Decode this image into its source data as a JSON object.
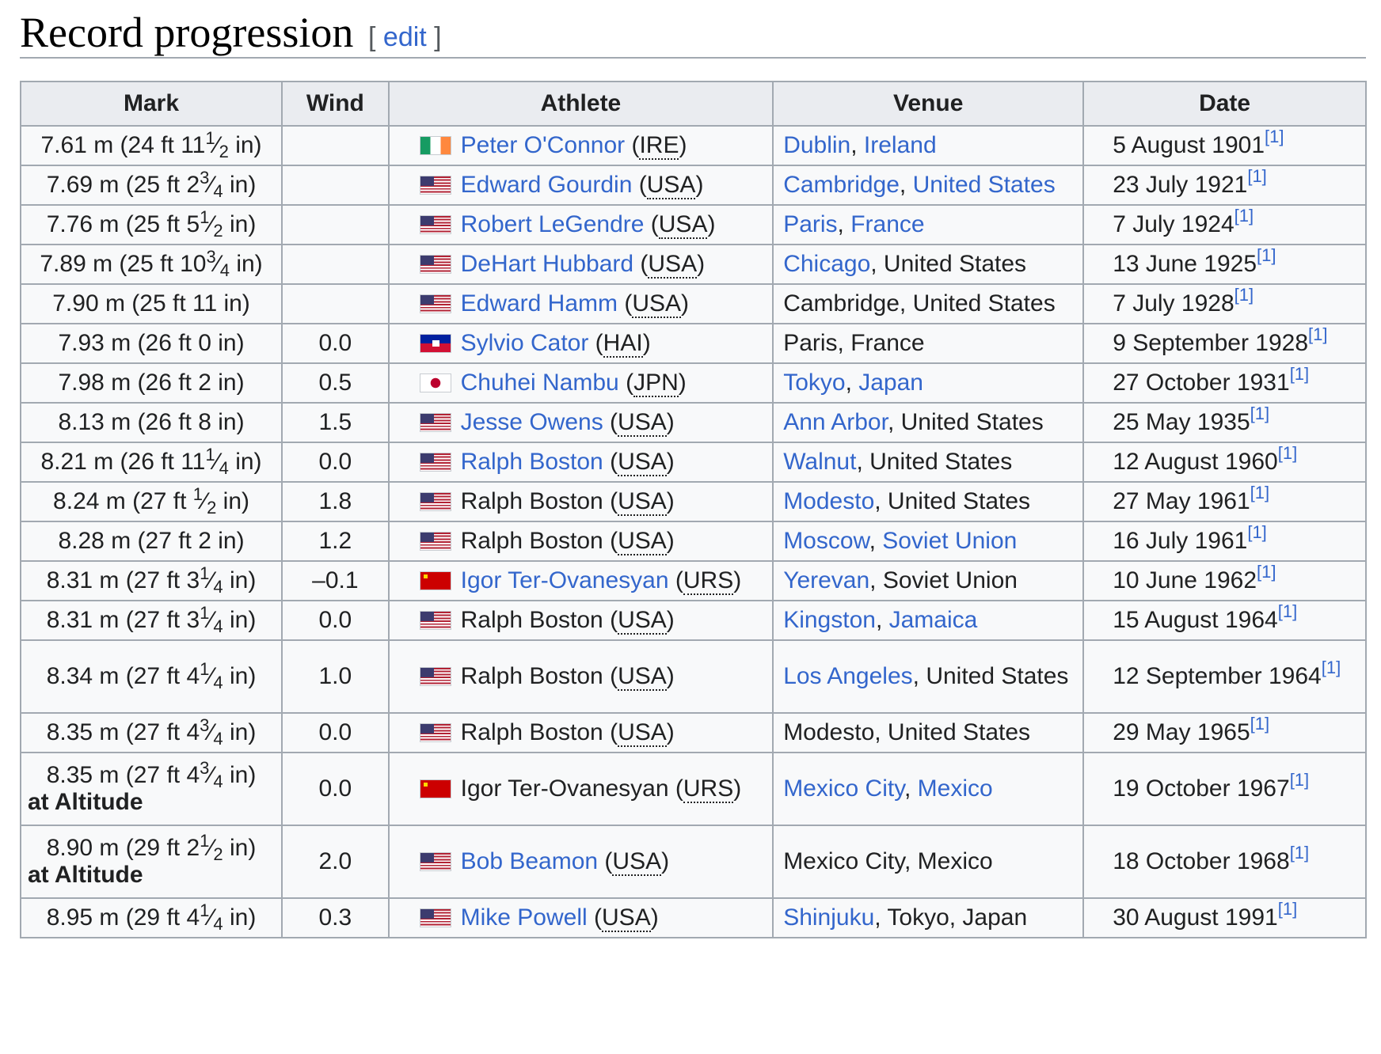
{
  "section": {
    "title": "Record progression",
    "edit_open": "[ ",
    "edit_label": "edit",
    "edit_close": " ]"
  },
  "table": {
    "headers": [
      "Mark",
      "Wind",
      "Athlete",
      "Venue",
      "Date"
    ],
    "rows": [
      {
        "mark": {
          "pre": "7.61 m (24 ft 11",
          "num": "1",
          "den": "2",
          "post": " in)"
        },
        "wind": "",
        "flag": "ire",
        "athlete": "Peter O'Connor",
        "athlete_link": true,
        "noc": "IRE",
        "venue": [
          {
            "text": "Dublin",
            "link": true
          },
          {
            "text": ", "
          },
          {
            "text": "Ireland",
            "link": true
          }
        ],
        "date": "5 August 1901",
        "ref": "[1]"
      },
      {
        "mark": {
          "pre": "7.69 m (25 ft 2",
          "num": "3",
          "den": "4",
          "post": " in)"
        },
        "wind": "",
        "flag": "usa",
        "athlete": "Edward Gourdin",
        "athlete_link": true,
        "noc": "USA",
        "venue": [
          {
            "text": "Cambridge",
            "link": true
          },
          {
            "text": ", "
          },
          {
            "text": "United States",
            "link": true
          }
        ],
        "date": "23 July 1921",
        "ref": "[1]"
      },
      {
        "mark": {
          "pre": "7.76 m (25 ft 5",
          "num": "1",
          "den": "2",
          "post": " in)"
        },
        "wind": "",
        "flag": "usa",
        "athlete": "Robert LeGendre",
        "athlete_link": true,
        "noc": "USA",
        "venue": [
          {
            "text": "Paris",
            "link": true
          },
          {
            "text": ", "
          },
          {
            "text": "France",
            "link": true
          }
        ],
        "date": "7 July 1924",
        "ref": "[1]"
      },
      {
        "mark": {
          "pre": "7.89 m (25 ft 10",
          "num": "3",
          "den": "4",
          "post": " in)"
        },
        "wind": "",
        "flag": "usa",
        "athlete": "DeHart Hubbard",
        "athlete_link": true,
        "noc": "USA",
        "venue": [
          {
            "text": "Chicago",
            "link": true
          },
          {
            "text": ", United States"
          }
        ],
        "date": "13 June 1925",
        "ref": "[1]"
      },
      {
        "mark": {
          "pre": "7.90 m (25 ft 11 in)"
        },
        "wind": "",
        "flag": "usa",
        "athlete": "Edward Hamm",
        "athlete_link": true,
        "noc": "USA",
        "venue": [
          {
            "text": "Cambridge, United States"
          }
        ],
        "date": "7 July 1928",
        "ref": "[1]"
      },
      {
        "mark": {
          "pre": "7.93 m (26 ft 0 in)"
        },
        "wind": "0.0",
        "flag": "hai",
        "athlete": "Sylvio Cator",
        "athlete_link": true,
        "noc": "HAI",
        "venue": [
          {
            "text": "Paris, France"
          }
        ],
        "date": "9 September 1928",
        "ref": "[1]"
      },
      {
        "mark": {
          "pre": "7.98 m (26 ft 2 in)"
        },
        "wind": "0.5",
        "flag": "jpn",
        "athlete": "Chuhei Nambu",
        "athlete_link": true,
        "noc": "JPN",
        "venue": [
          {
            "text": "Tokyo",
            "link": true
          },
          {
            "text": ", "
          },
          {
            "text": "Japan",
            "link": true
          }
        ],
        "date": "27 October 1931",
        "ref": "[1]"
      },
      {
        "mark": {
          "pre": "8.13 m (26 ft 8 in)"
        },
        "wind": "1.5",
        "flag": "usa",
        "athlete": "Jesse Owens",
        "athlete_link": true,
        "noc": "USA",
        "venue": [
          {
            "text": "Ann Arbor",
            "link": true
          },
          {
            "text": ", United States"
          }
        ],
        "date": "25 May 1935",
        "ref": "[1]"
      },
      {
        "mark": {
          "pre": "8.21 m (26 ft 11",
          "num": "1",
          "den": "4",
          "post": " in)"
        },
        "wind": "0.0",
        "flag": "usa",
        "athlete": "Ralph Boston",
        "athlete_link": true,
        "noc": "USA",
        "venue": [
          {
            "text": "Walnut",
            "link": true
          },
          {
            "text": ", United States"
          }
        ],
        "date": "12 August 1960",
        "ref": "[1]"
      },
      {
        "mark": {
          "pre": "8.24 m (27 ft ",
          "num": "1",
          "den": "2",
          "post": " in)"
        },
        "wind": "1.8",
        "flag": "usa",
        "athlete": "Ralph Boston",
        "athlete_link": false,
        "noc": "USA",
        "venue": [
          {
            "text": "Modesto",
            "link": true
          },
          {
            "text": ", United States"
          }
        ],
        "date": "27 May 1961",
        "ref": "[1]"
      },
      {
        "mark": {
          "pre": "8.28 m (27 ft 2 in)"
        },
        "wind": "1.2",
        "flag": "usa",
        "athlete": "Ralph Boston",
        "athlete_link": false,
        "noc": "USA",
        "venue": [
          {
            "text": "Moscow",
            "link": true
          },
          {
            "text": ", "
          },
          {
            "text": "Soviet Union",
            "link": true
          }
        ],
        "date": "16 July 1961",
        "ref": "[1]"
      },
      {
        "mark": {
          "pre": "8.31 m (27 ft 3",
          "num": "1",
          "den": "4",
          "post": " in)"
        },
        "wind": "–0.1",
        "flag": "urs",
        "athlete": "Igor Ter-Ovanesyan",
        "athlete_link": true,
        "noc": "URS",
        "venue": [
          {
            "text": "Yerevan",
            "link": true
          },
          {
            "text": ", Soviet Union"
          }
        ],
        "date": "10 June 1962",
        "ref": "[1]"
      },
      {
        "mark": {
          "pre": "8.31 m (27 ft 3",
          "num": "1",
          "den": "4",
          "post": " in)"
        },
        "wind": "0.0",
        "flag": "usa",
        "athlete": "Ralph Boston",
        "athlete_link": false,
        "noc": "USA",
        "venue": [
          {
            "text": "Kingston",
            "link": true
          },
          {
            "text": ", "
          },
          {
            "text": "Jamaica",
            "link": true
          }
        ],
        "date": "15 August 1964",
        "ref": "[1]"
      },
      {
        "mark": {
          "pre": "8.34 m (27 ft 4",
          "num": "1",
          "den": "4",
          "post": " in)"
        },
        "wind": "1.0",
        "flag": "usa",
        "athlete": "Ralph Boston",
        "athlete_link": false,
        "noc": "USA",
        "venue": [
          {
            "text": "Los Angeles",
            "link": true
          },
          {
            "text": ", United States"
          }
        ],
        "date": "12 September 1964",
        "ref": "[1]"
      },
      {
        "mark": {
          "pre": "8.35 m (27 ft 4",
          "num": "3",
          "den": "4",
          "post": " in)"
        },
        "wind": "0.0",
        "flag": "usa",
        "athlete": "Ralph Boston",
        "athlete_link": false,
        "noc": "USA",
        "venue": [
          {
            "text": "Modesto, United States"
          }
        ],
        "date": "29 May 1965",
        "ref": "[1]"
      },
      {
        "mark": {
          "pre": "8.35 m (27 ft 4",
          "num": "3",
          "den": "4",
          "post": " in)"
        },
        "altitude": "at Altitude",
        "wind": "0.0",
        "flag": "urs",
        "athlete": "Igor Ter-Ovanesyan",
        "athlete_link": false,
        "noc": "URS",
        "venue": [
          {
            "text": "Mexico City",
            "link": true
          },
          {
            "text": ", "
          },
          {
            "text": "Mexico",
            "link": true
          }
        ],
        "date": "19 October 1967",
        "ref": "[1]"
      },
      {
        "mark": {
          "pre": "8.90 m (29 ft 2",
          "num": "1",
          "den": "2",
          "post": " in)"
        },
        "altitude": "at Altitude",
        "wind": "2.0",
        "flag": "usa",
        "athlete": "Bob Beamon",
        "athlete_link": true,
        "noc": "USA",
        "venue": [
          {
            "text": "Mexico City, Mexico"
          }
        ],
        "date": "18 October 1968",
        "ref": "[1]"
      },
      {
        "mark": {
          "pre": "8.95 m (29 ft 4",
          "num": "1",
          "den": "4",
          "post": " in)"
        },
        "wind": "0.3",
        "flag": "usa",
        "athlete": "Mike Powell",
        "athlete_link": true,
        "noc": "USA",
        "venue": [
          {
            "text": "Shinjuku",
            "link": true
          },
          {
            "text": ", Tokyo, Japan"
          }
        ],
        "date": "30 August 1991",
        "ref": "[1]"
      }
    ]
  },
  "colors": {
    "link": "#3366cc",
    "header_bg": "#eaecf0",
    "cell_bg": "#f8f9fa",
    "border": "#a2a9b1"
  },
  "icons": {
    "ire": "flag-ireland-icon",
    "usa": "flag-usa-icon",
    "hai": "flag-haiti-icon",
    "jpn": "flag-japan-icon",
    "urs": "flag-soviet-union-icon"
  }
}
